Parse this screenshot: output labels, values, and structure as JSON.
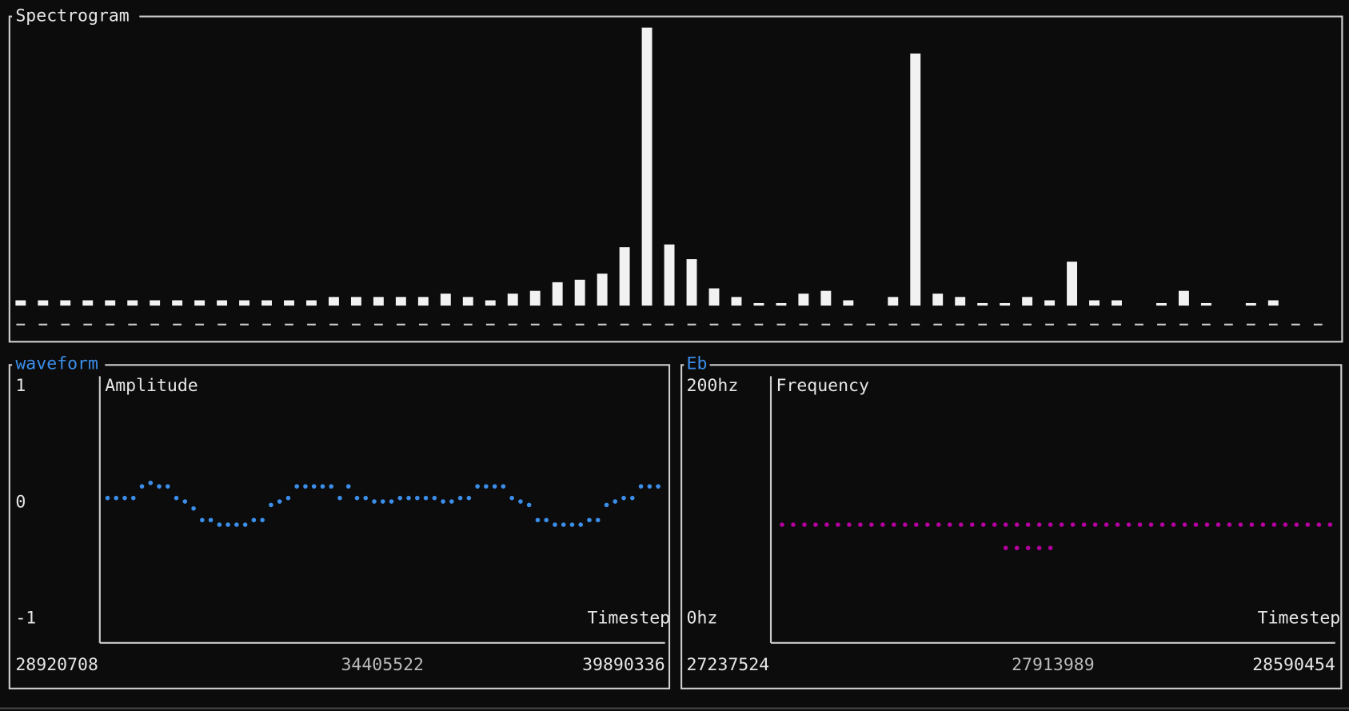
{
  "chart_data": [
    {
      "type": "bar",
      "title": "Spectrogram",
      "color": "#f2f2f2",
      "values": [
        1.9,
        1.9,
        1.9,
        1.9,
        1.9,
        1.9,
        1.9,
        1.9,
        1.9,
        1.9,
        1.9,
        1.9,
        1.9,
        1.9,
        3.1,
        3.1,
        3.1,
        3.1,
        3.1,
        4.3,
        3.1,
        1.9,
        4.3,
        5.3,
        8.4,
        9.3,
        11.5,
        21,
        100,
        22,
        16.7,
        6.2,
        3.1,
        0.9,
        0.9,
        4.3,
        5.3,
        1.9,
        0,
        3.1,
        90.7,
        4.3,
        3.1,
        0.9,
        0.9,
        3.1,
        1.9,
        15.8,
        1.9,
        1.9,
        0,
        0.9,
        5.3,
        0.9,
        0,
        0.9,
        1.9,
        0,
        0
      ]
    },
    {
      "type": "scatter",
      "title": "waveform",
      "ylabel": "Amplitude",
      "xlabel": "Timestep",
      "color": "#3b8eea",
      "xlim": [
        28920708,
        39890336
      ],
      "xticks": [
        28920708,
        34405522,
        39890336
      ],
      "ylim": [
        -1,
        1
      ],
      "yticks": [
        -1,
        0,
        1
      ],
      "x": [
        29070977,
        29237942,
        29404907,
        29571872,
        29738837,
        29905802,
        30072767,
        30239732,
        30406697,
        30573662,
        30740627,
        30907592,
        31074557,
        31241522,
        31408487,
        31575452,
        31742417,
        31909382,
        32076347,
        32243312,
        32410277,
        32577242,
        32744207,
        32911172,
        33078137,
        33245102,
        33412067,
        33579032,
        33745997,
        33912962,
        34079927,
        34246892,
        34413857,
        34580822,
        34747787,
        34914752,
        35081717,
        35248682,
        35415647,
        35582612,
        35749577,
        35916542,
        36083507,
        36250472,
        36417437,
        36584402,
        36751367,
        36918332,
        37085297,
        37252262,
        37419227,
        37586192,
        37753157,
        37920122,
        38087087,
        38254052,
        38421017,
        38587982,
        38754947,
        38921912,
        39088877,
        39255842,
        39422807,
        39589772,
        39756737
      ],
      "values": [
        0.04,
        0.04,
        0.04,
        0.04,
        0.14,
        0.17,
        0.14,
        0.14,
        0.04,
        0.01,
        -0.05,
        -0.15,
        -0.15,
        -0.19,
        -0.19,
        -0.19,
        -0.19,
        -0.15,
        -0.15,
        -0.02,
        0.01,
        0.04,
        0.14,
        0.14,
        0.14,
        0.14,
        0.14,
        0.04,
        0.14,
        0.04,
        0.04,
        0.01,
        0.01,
        0.01,
        0.04,
        0.04,
        0.04,
        0.04,
        0.04,
        0.01,
        0.01,
        0.04,
        0.04,
        0.14,
        0.14,
        0.14,
        0.14,
        0.04,
        0.01,
        -0.02,
        -0.15,
        -0.15,
        -0.19,
        -0.19,
        -0.19,
        -0.19,
        -0.15,
        -0.15,
        -0.02,
        0.01,
        0.04,
        0.04,
        0.14,
        0.14,
        0.14
      ]
    },
    {
      "type": "scatter",
      "title": "Eb",
      "ylabel": "Frequency",
      "xlabel": "Timestep",
      "color": "#b4009e",
      "xlim": [
        27237524,
        28590454
      ],
      "xticks": [
        27237524,
        27913989,
        28590454
      ],
      "ylim": [
        0,
        200
      ],
      "yticks": [
        {
          "value": 0,
          "label": "0hz"
        },
        {
          "value": 200,
          "label": "200hz"
        }
      ],
      "x": [
        27264335,
        27291146,
        27317957,
        27344768,
        27371579,
        27398390,
        27425201,
        27452012,
        27478823,
        27505634,
        27532445,
        27559256,
        27586067,
        27612878,
        27639689,
        27666500,
        27693311,
        27720122,
        27746933,
        27773744,
        27800555,
        27827366,
        27854177,
        27880988,
        27907799,
        27934610,
        27961421,
        27988232,
        28015043,
        28041854,
        28068665,
        28095476,
        28122287,
        28149098,
        28175909,
        28202720,
        28229531,
        28256342,
        28283153,
        28309964,
        28336775,
        28363586,
        28390397,
        28417208,
        28444019,
        28470830,
        28497641,
        28524452,
        28551263,
        28578074,
        27800555,
        27827366,
        27854177,
        27880988,
        27907799
      ],
      "values": [
        81,
        81,
        81,
        81,
        81,
        81,
        81,
        81,
        81,
        81,
        81,
        81,
        81,
        81,
        81,
        81,
        81,
        81,
        81,
        81,
        81,
        81,
        81,
        81,
        81,
        81,
        81,
        81,
        81,
        81,
        81,
        81,
        81,
        81,
        81,
        81,
        81,
        81,
        81,
        81,
        81,
        81,
        81,
        81,
        81,
        81,
        81,
        81,
        81,
        81,
        61,
        61,
        61,
        61,
        61
      ]
    }
  ]
}
